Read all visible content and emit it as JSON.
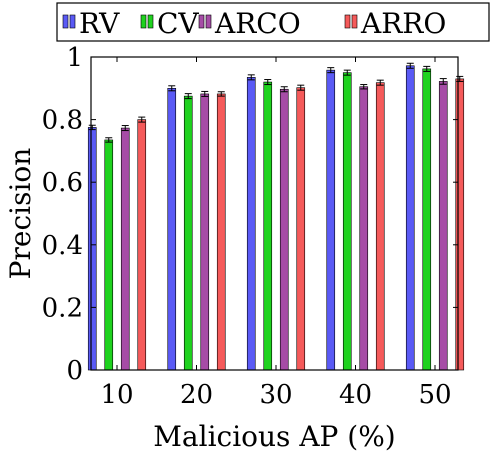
{
  "chart_data": {
    "type": "bar",
    "xlabel": "Malicious AP (%)",
    "ylabel": "Precision",
    "categories": [
      "10",
      "20",
      "30",
      "40",
      "50"
    ],
    "ylim": [
      0,
      1
    ],
    "yticks": [
      "0",
      "0.2",
      "0.4",
      "0.6",
      "0.8",
      "1"
    ],
    "grid": false,
    "legend_position": "top",
    "error_bars": true,
    "series": [
      {
        "name": "RV",
        "color": "#5a5af5",
        "values": [
          0.775,
          0.9,
          0.935,
          0.958,
          0.972
        ],
        "errors": [
          0.007,
          0.008,
          0.008,
          0.008,
          0.008
        ]
      },
      {
        "name": "CV",
        "color": "#1fd21f",
        "values": [
          0.735,
          0.875,
          0.92,
          0.95,
          0.962
        ],
        "errors": [
          0.007,
          0.008,
          0.008,
          0.008,
          0.008
        ]
      },
      {
        "name": "ARCO",
        "color": "#a64ca6",
        "values": [
          0.773,
          0.882,
          0.897,
          0.905,
          0.922
        ],
        "errors": [
          0.008,
          0.008,
          0.008,
          0.007,
          0.009
        ]
      },
      {
        "name": "ARRO",
        "color": "#f55a5a",
        "values": [
          0.8,
          0.882,
          0.902,
          0.918,
          0.93
        ],
        "errors": [
          0.008,
          0.007,
          0.008,
          0.008,
          0.008
        ]
      }
    ]
  }
}
